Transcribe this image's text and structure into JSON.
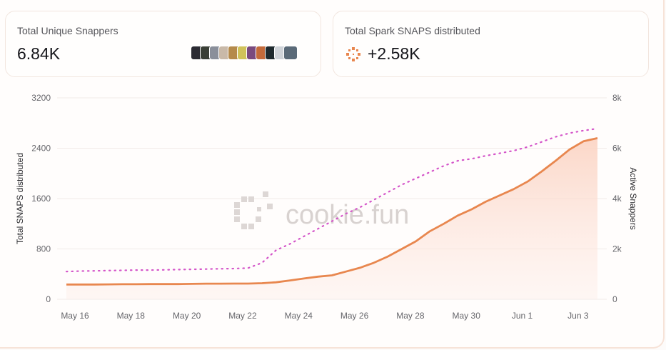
{
  "cards": {
    "snappers": {
      "title": "Total Unique Snappers",
      "value": "6.84K"
    },
    "snaps": {
      "title": "Total Spark SNAPS distributed",
      "value": "+2.58K"
    }
  },
  "avatars": [
    "#2b2b33",
    "#3a3f36",
    "#8a8f9a",
    "#c9b9a8",
    "#b58a4a",
    "#d0c25a",
    "#7a4a7e",
    "#c46a3a",
    "#1f2a2e",
    "#cfd3d8",
    "#5a6a78"
  ],
  "colors": {
    "accent": "#e8874f",
    "dotted": "#d455c9"
  },
  "watermark": "cookie.fun",
  "chart_data": {
    "type": "line",
    "x": [
      "May 16",
      "May 16.5",
      "May 17",
      "May 17.5",
      "May 18",
      "May 18.5",
      "May 19",
      "May 19.5",
      "May 20",
      "May 20.5",
      "May 21",
      "May 21.5",
      "May 22",
      "May 22.5",
      "May 23",
      "May 23.5",
      "May 24",
      "May 24.5",
      "May 25",
      "May 25.5",
      "May 26",
      "May 26.5",
      "May 27",
      "May 27.5",
      "May 28",
      "May 28.5",
      "May 29",
      "May 29.5",
      "May 30",
      "May 30.5",
      "May 31",
      "May 31.5",
      "Jun 1",
      "Jun 1.5",
      "Jun 2",
      "Jun 2.5",
      "Jun 3",
      "Jun 3.5",
      "Jun 4"
    ],
    "x_tick_labels": [
      "May 16",
      "May 18",
      "May 20",
      "May 22",
      "May 24",
      "May 26",
      "May 28",
      "May 30",
      "Jun 1",
      "Jun 3"
    ],
    "series": [
      {
        "axis": "left",
        "style": "solid-area",
        "values": [
          235,
          235,
          235,
          237,
          240,
          240,
          242,
          242,
          242,
          245,
          248,
          248,
          250,
          250,
          255,
          270,
          300,
          330,
          360,
          380,
          440,
          500,
          580,
          680,
          800,
          920,
          1080,
          1200,
          1330,
          1430,
          1550,
          1650,
          1750,
          1870,
          2030,
          2200,
          2380,
          2510,
          2560
        ]
      },
      {
        "axis": "right",
        "style": "dotted",
        "values": [
          1100,
          1120,
          1130,
          1140,
          1150,
          1160,
          1160,
          1170,
          1180,
          1190,
          1200,
          1210,
          1220,
          1240,
          1450,
          1950,
          2200,
          2500,
          2800,
          3100,
          3400,
          3650,
          3950,
          4250,
          4550,
          4800,
          5050,
          5300,
          5500,
          5580,
          5700,
          5800,
          5900,
          6050,
          6250,
          6450,
          6600,
          6700,
          6780
        ]
      }
    ],
    "ylabel": "Total SNAPS distributed",
    "ylim": [
      0,
      3200
    ],
    "y_ticks": [
      "3200",
      "2400",
      "1600",
      "800",
      "0"
    ],
    "y2label": "Active Snappers",
    "y2lim": [
      0,
      8000
    ],
    "y2_ticks": [
      "8k",
      "6k",
      "4k",
      "2k",
      "0"
    ],
    "grid": true
  }
}
